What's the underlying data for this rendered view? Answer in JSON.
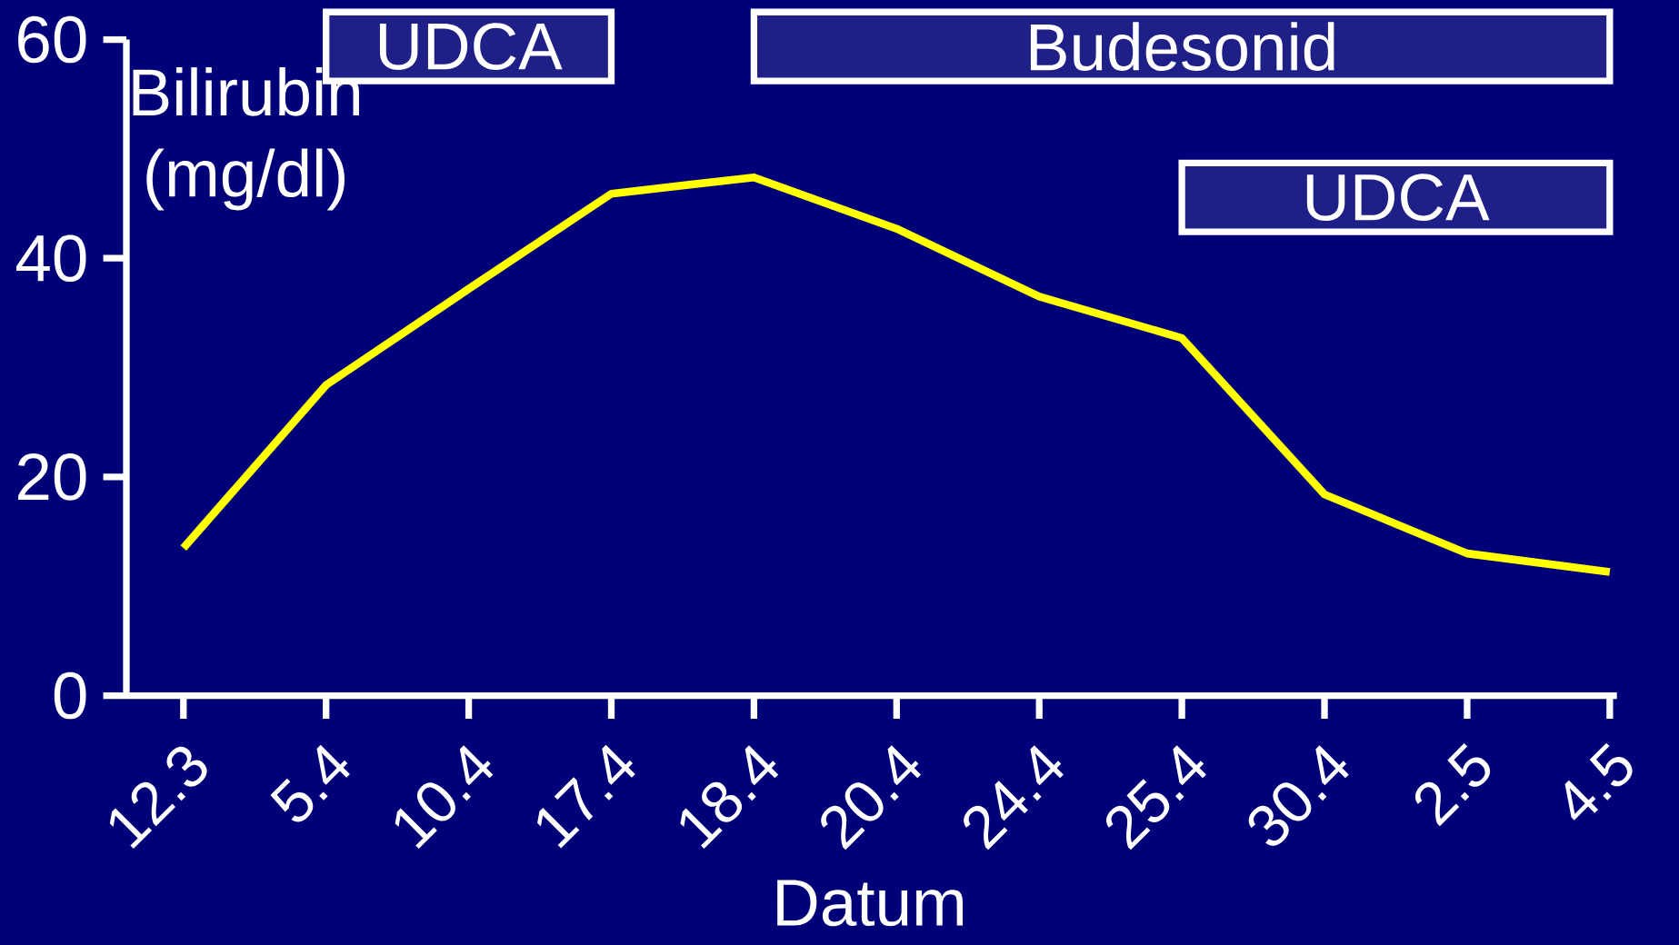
{
  "chart_data": {
    "type": "line",
    "xlabel": "Datum",
    "ylabel": "Bilirubin (mg/dl)",
    "categories": [
      "12.3",
      "5.4",
      "10.4",
      "17.4",
      "18.4",
      "20.4",
      "24.4",
      "25.4",
      "30.4",
      "2.5",
      "4.5"
    ],
    "series": [
      {
        "color": "#ffff00",
        "values": [
          13.5,
          28.4,
          37.2,
          45.9,
          47.4,
          42.7,
          36.5,
          32.7,
          18.4,
          13.0,
          11.3
        ]
      }
    ],
    "ylim": [
      0,
      60
    ],
    "yticks": [
      0,
      20,
      40,
      60
    ],
    "bands": [
      {
        "axis": "x",
        "from": "5.4",
        "to": "17.4",
        "label": "UDCA",
        "color": "#ffffff"
      },
      {
        "axis": "x",
        "from": "18.4",
        "to": "4.5",
        "label": "Budesonid",
        "color": "#ffffff"
      },
      {
        "axis": "x",
        "from": "25.4",
        "to": "4.5",
        "label": "UDCA",
        "color": "#ffffff"
      }
    ],
    "marker": "none",
    "line_style": "solid"
  }
}
